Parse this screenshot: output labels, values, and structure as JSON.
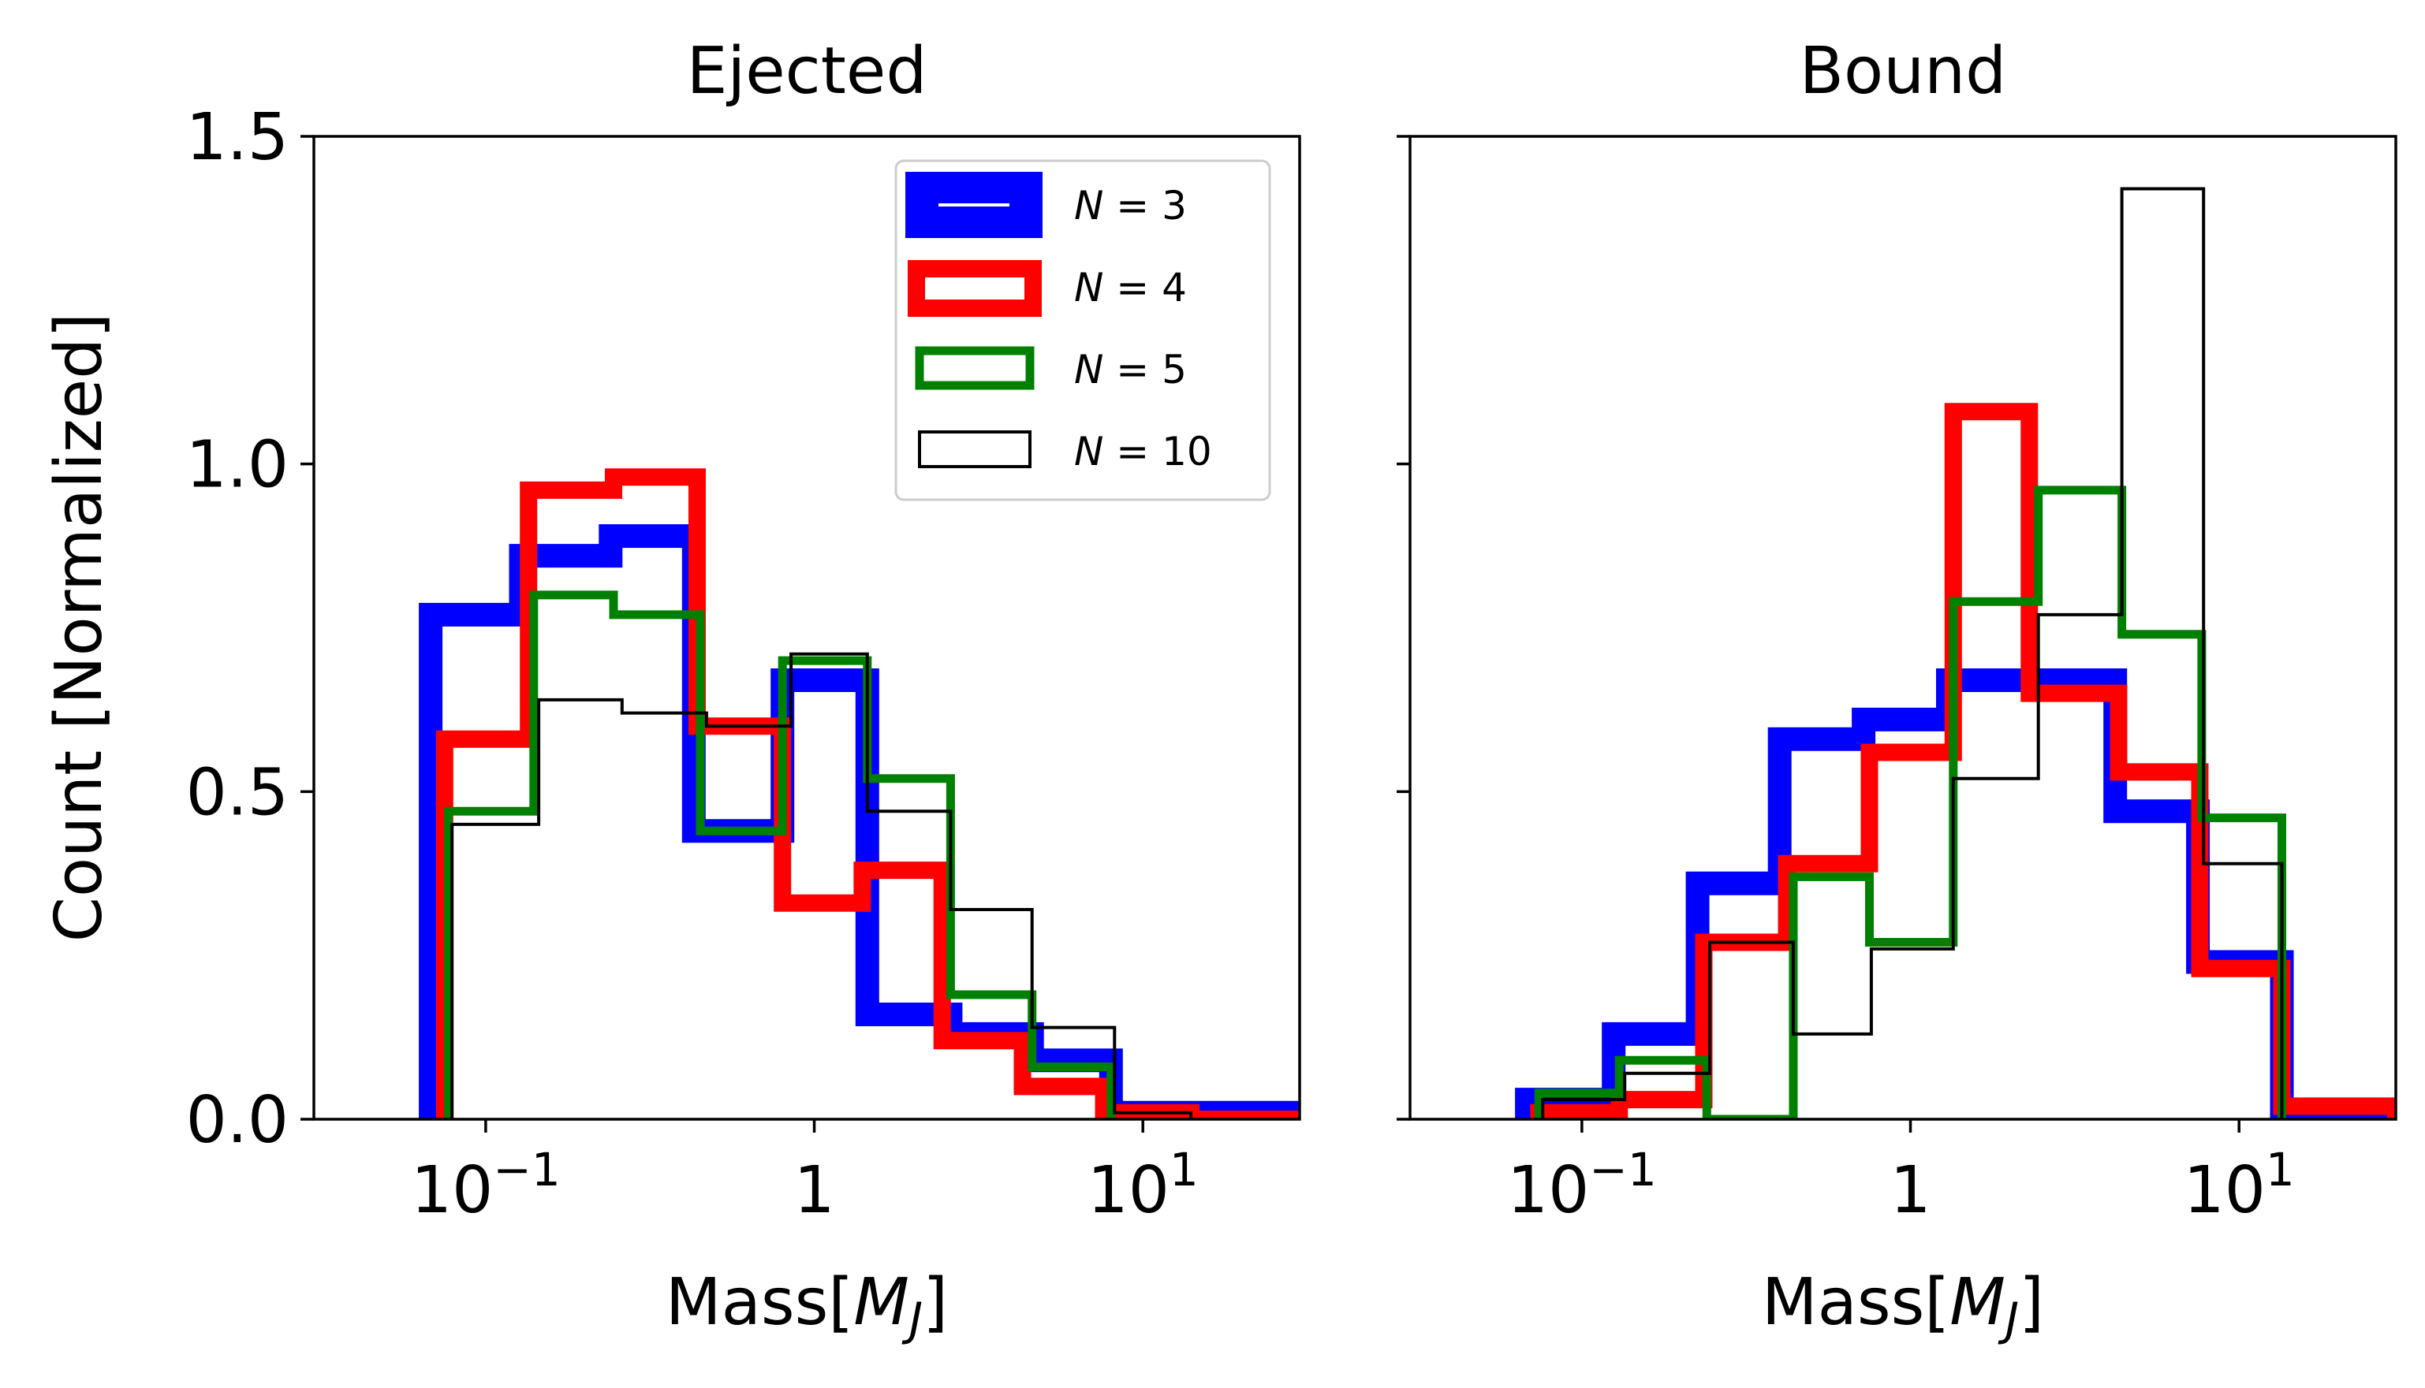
{
  "chart_data": [
    {
      "type": "histogram",
      "title": "Ejected",
      "xlabel": "Mass",
      "xlabel_unit": "M_J",
      "ylabel": "Count [Normalized]",
      "xscale": "log",
      "xlim": [
        0.03,
        30
      ],
      "ylim": [
        0,
        1.5
      ],
      "yticks": [
        {
          "value": 0.0,
          "label": "0.0"
        },
        {
          "value": 0.5,
          "label": "0.5"
        },
        {
          "value": 1.0,
          "label": "1.0"
        },
        {
          "value": 1.5,
          "label": "1.5"
        }
      ],
      "xticks": [
        {
          "value": 0.1,
          "base": "10",
          "exp": "−1"
        },
        {
          "value": 1,
          "base": "1",
          "exp": ""
        },
        {
          "value": 10,
          "base": "10",
          "exp": "1"
        }
      ],
      "legend": {
        "position": "top-right"
      },
      "series": [
        {
          "name": "N = 3",
          "n": "3",
          "color": "#0000ff",
          "width": 30,
          "filled_legend": true,
          "edges": [
            0.068,
            0.128,
            0.24,
            0.43,
            0.8,
            1.45,
            2.6,
            4.6,
            8.0,
            30
          ],
          "values": [
            0.77,
            0.86,
            0.89,
            0.44,
            0.67,
            0.16,
            0.13,
            0.09,
            0.01
          ]
        },
        {
          "name": "N = 4",
          "n": "4",
          "color": "#ff0000",
          "width": 22,
          "edges": [
            0.075,
            0.135,
            0.245,
            0.44,
            0.8,
            1.4,
            2.45,
            4.3,
            7.6,
            14,
            30
          ],
          "values": [
            0.58,
            0.96,
            0.98,
            0.6,
            0.33,
            0.38,
            0.12,
            0.05,
            0.01,
            0.0
          ]
        },
        {
          "name": "N = 5",
          "n": "5",
          "color": "#008000",
          "width": 11,
          "edges": [
            0.077,
            0.14,
            0.245,
            0.45,
            0.8,
            1.45,
            2.6,
            4.6,
            8.0
          ],
          "values": [
            0.47,
            0.8,
            0.77,
            0.44,
            0.7,
            0.52,
            0.19,
            0.08
          ]
        },
        {
          "name": "N = 10",
          "n": "10",
          "color": "#000000",
          "width": 4,
          "edges": [
            0.079,
            0.145,
            0.26,
            0.47,
            0.85,
            1.45,
            2.6,
            4.6,
            8.2,
            14
          ],
          "values": [
            0.45,
            0.64,
            0.62,
            0.6,
            0.71,
            0.47,
            0.32,
            0.14,
            0.01
          ]
        }
      ]
    },
    {
      "type": "histogram",
      "title": "Bound",
      "xlabel": "Mass",
      "xlabel_unit": "M_J",
      "xscale": "log",
      "xlim": [
        0.03,
        30
      ],
      "ylim": [
        0,
        1.5
      ],
      "yticks_unlabeled": [
        0.0,
        0.5,
        1.0,
        1.5
      ],
      "xticks": [
        {
          "value": 0.1,
          "base": "10",
          "exp": "−1"
        },
        {
          "value": 1,
          "base": "1",
          "exp": ""
        },
        {
          "value": 10,
          "base": "10",
          "exp": "1"
        }
      ],
      "series": [
        {
          "name": "N = 3",
          "color": "#0000ff",
          "width": 30,
          "edges": [
            0.068,
            0.125,
            0.225,
            0.4,
            0.72,
            1.3,
            2.3,
            4.2,
            7.5,
            13.5,
            30
          ],
          "values": [
            0.03,
            0.13,
            0.36,
            0.58,
            0.61,
            0.67,
            0.67,
            0.47,
            0.24,
            0.01
          ]
        },
        {
          "name": "N = 4",
          "color": "#ff0000",
          "width": 22,
          "edges": [
            0.074,
            0.13,
            0.235,
            0.42,
            0.75,
            1.35,
            2.3,
            4.3,
            7.6,
            13.5,
            30
          ],
          "values": [
            0.01,
            0.03,
            0.27,
            0.39,
            0.56,
            1.08,
            0.65,
            0.53,
            0.23,
            0.02
          ]
        },
        {
          "name": "N = 5",
          "color": "#008000",
          "width": 11,
          "edges": [
            0.074,
            0.13,
            0.24,
            0.44,
            0.75,
            1.35,
            2.45,
            4.4,
            7.7,
            13.5
          ],
          "values": [
            0.04,
            0.09,
            0.0,
            0.37,
            0.27,
            0.79,
            0.96,
            0.74,
            0.46
          ]
        },
        {
          "name": "N = 10",
          "color": "#000000",
          "width": 4,
          "edges": [
            0.076,
            0.135,
            0.245,
            0.44,
            0.76,
            1.35,
            2.45,
            4.4,
            7.8,
            13.5
          ],
          "values": [
            0.03,
            0.07,
            0.27,
            0.13,
            0.26,
            0.52,
            0.77,
            1.42,
            0.39
          ]
        }
      ]
    }
  ]
}
